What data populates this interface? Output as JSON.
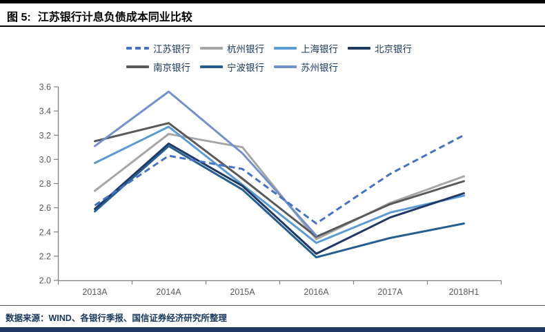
{
  "figure": {
    "label": "图 5:",
    "title": "江苏银行计息负债成本同业比较"
  },
  "footer": {
    "source": "数据来源：WIND、各银行季报、国信证券经济研究所整理"
  },
  "colors": {
    "legend_text": "#17375E",
    "axis": "#808080",
    "tick_label": "#595959",
    "rule": "#000000",
    "bottom_bar": "#1F3864"
  },
  "chart_data": {
    "type": "line",
    "title": "江苏银行计息负债成本同业比较",
    "xlabel": "",
    "ylabel": "",
    "categories": [
      "2013A",
      "2014A",
      "2015A",
      "2016A",
      "2017A",
      "2018H1"
    ],
    "series": [
      {
        "name": "江苏银行",
        "values": [
          2.62,
          3.03,
          2.92,
          2.47,
          2.88,
          3.2
        ],
        "color": "#4472C4",
        "dashed": true
      },
      {
        "name": "杭州银行",
        "values": [
          2.74,
          3.21,
          3.1,
          2.34,
          2.64,
          2.86
        ],
        "color": "#A6A6A6",
        "dashed": false
      },
      {
        "name": "上海银行",
        "values": [
          2.97,
          3.27,
          2.79,
          2.31,
          2.56,
          2.7
        ],
        "color": "#5B9BD5",
        "dashed": false
      },
      {
        "name": "北京银行",
        "values": [
          2.59,
          3.13,
          2.78,
          2.22,
          2.52,
          2.72
        ],
        "color": "#1F3864",
        "dashed": false
      },
      {
        "name": "南京银行",
        "values": [
          3.15,
          3.3,
          2.84,
          2.36,
          2.63,
          2.82
        ],
        "color": "#595959",
        "dashed": false
      },
      {
        "name": "宁波银行",
        "values": [
          2.57,
          3.11,
          2.75,
          2.19,
          2.35,
          2.47
        ],
        "color": "#255E91",
        "dashed": false
      },
      {
        "name": "苏州银行",
        "values": [
          3.11,
          3.56,
          3.05,
          2.37,
          null,
          null
        ],
        "color": "#7191CE",
        "dashed": false
      }
    ],
    "ylim": [
      2.0,
      3.6
    ],
    "ytick_step": 0.2,
    "grid": false,
    "legend_position": "top",
    "legend_rows": [
      4,
      3
    ]
  }
}
